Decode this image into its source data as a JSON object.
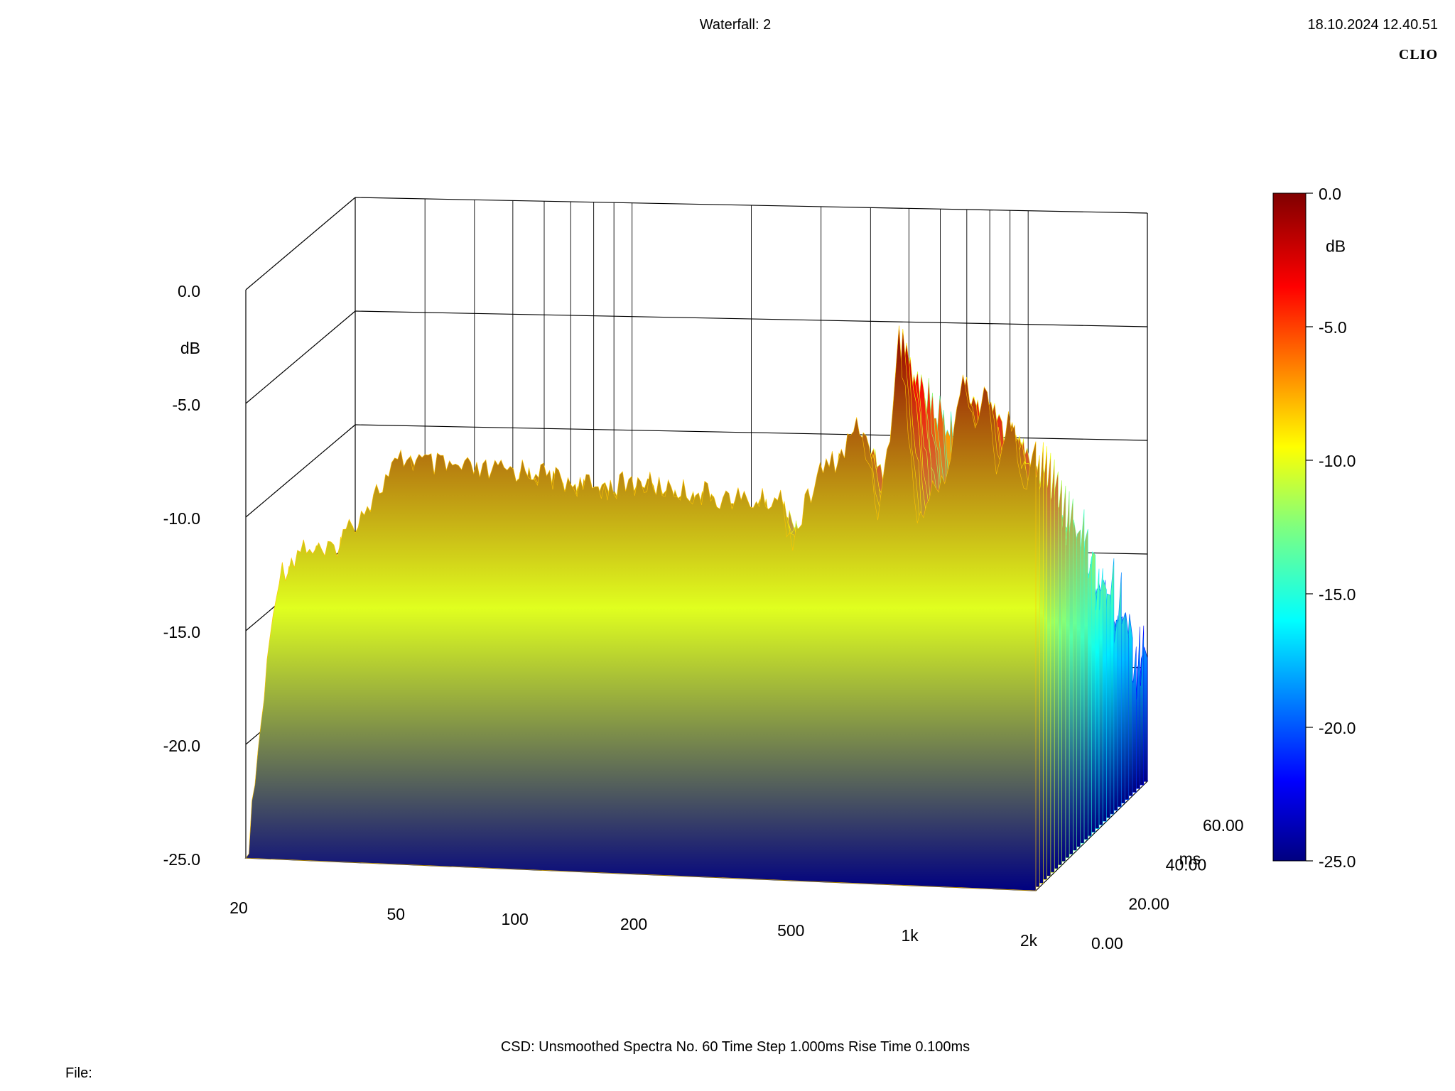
{
  "header": {
    "title": "Waterfall: 2",
    "timestamp": "18.10.2024 12.40.51",
    "brand": "CLIO"
  },
  "footer": {
    "info": "CSD:   Unsmoothed   Spectra No. 60   Time Step 1.000ms   Rise Time 0.100ms",
    "file_label": "File:"
  },
  "chart_data": {
    "type": "waterfall",
    "x_axis": {
      "scale": "log",
      "range": [
        20,
        2000
      ],
      "tick_values": [
        20,
        50,
        100,
        200,
        500,
        1000,
        2000
      ],
      "tick_labels": [
        "20",
        "50",
        "100",
        "200",
        "500",
        "1k",
        "2k"
      ]
    },
    "z_axis": {
      "unit": "ms",
      "range": [
        0,
        60
      ],
      "tick_values": [
        0,
        20,
        40,
        60
      ],
      "tick_labels": [
        "0.00",
        "20.00",
        "40.00",
        "60.00"
      ]
    },
    "y_axis": {
      "unit": "dB",
      "range": [
        -25,
        0
      ],
      "tick_values": [
        0,
        -5,
        -10,
        -15,
        -20,
        -25
      ],
      "tick_labels": [
        "0.0",
        "-5.0",
        "-10.0",
        "-15.0",
        "-20.0",
        "-25.0"
      ]
    },
    "colorbar": {
      "unit": "dB",
      "range": [
        -25,
        0
      ],
      "tick_values": [
        0,
        -5,
        -10,
        -15,
        -20,
        -25
      ],
      "tick_labels": [
        "0.0",
        "-5.0",
        "-10.0",
        "-15.0",
        "-20.0",
        "-25.0"
      ],
      "colormap": "jet"
    },
    "time_step_ms": 1.0,
    "spectra_count": 60,
    "first_spectrum_db": [
      {
        "f": 20,
        "db": -25
      },
      {
        "f": 22,
        "db": -18
      },
      {
        "f": 24,
        "db": -12
      },
      {
        "f": 28,
        "db": -10.5
      },
      {
        "f": 32,
        "db": -11
      },
      {
        "f": 50,
        "db": -6.5
      },
      {
        "f": 60,
        "db": -6.8
      },
      {
        "f": 80,
        "db": -7.0
      },
      {
        "f": 100,
        "db": -6.8
      },
      {
        "f": 150,
        "db": -7.5
      },
      {
        "f": 200,
        "db": -7.2
      },
      {
        "f": 300,
        "db": -7.6
      },
      {
        "f": 400,
        "db": -7.8
      },
      {
        "f": 450,
        "db": -7.5
      },
      {
        "f": 480,
        "db": -9.5
      },
      {
        "f": 520,
        "db": -8.0
      },
      {
        "f": 560,
        "db": -6.5
      },
      {
        "f": 650,
        "db": -5.5
      },
      {
        "f": 700,
        "db": -4.2
      },
      {
        "f": 750,
        "db": -5.5
      },
      {
        "f": 800,
        "db": -8.0
      },
      {
        "f": 850,
        "db": -5.0
      },
      {
        "f": 900,
        "db": 0.0
      },
      {
        "f": 960,
        "db": -5.0
      },
      {
        "f": 1000,
        "db": -8.5
      },
      {
        "f": 1100,
        "db": -7.0
      },
      {
        "f": 1200,
        "db": -6.0
      },
      {
        "f": 1300,
        "db": -2.0
      },
      {
        "f": 1400,
        "db": -4.0
      },
      {
        "f": 1500,
        "db": -2.5
      },
      {
        "f": 1600,
        "db": -6.0
      },
      {
        "f": 1700,
        "db": -3.5
      },
      {
        "f": 1800,
        "db": -5.0
      },
      {
        "f": 1900,
        "db": -7.0
      },
      {
        "f": 2000,
        "db": -4.5
      }
    ]
  }
}
